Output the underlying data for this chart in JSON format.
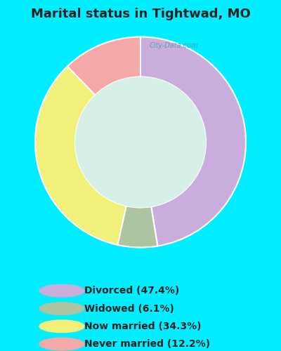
{
  "title": "Marital status in Tightwad, MO",
  "slices": [
    47.4,
    6.1,
    34.3,
    12.2
  ],
  "labels": [
    "Divorced (47.4%)",
    "Widowed (6.1%)",
    "Now married (34.3%)",
    "Never married (12.2%)"
  ],
  "colors": [
    "#c9aedd",
    "#adc4a0",
    "#f0f07a",
    "#f4a8a8"
  ],
  "background_top": "#00eeff",
  "background_chart": "#d6f0e8",
  "donut_hole": 0.62,
  "startangle": 90,
  "legend_text_color": "#222222",
  "title_color": "#222222",
  "watermark": "City-Data.com"
}
